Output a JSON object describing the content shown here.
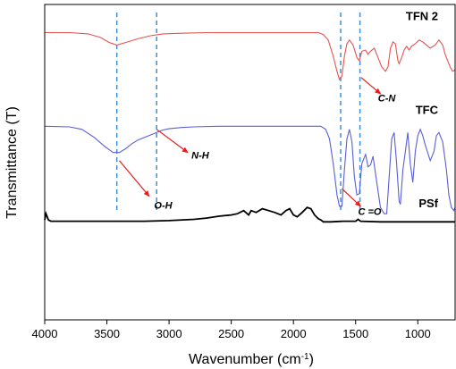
{
  "chart_data": {
    "type": "line",
    "title": "",
    "xlabel": "Wavenumber (cm",
    "xlabel_sup": "-1",
    "xlabel_close": ")",
    "ylabel": "Transmittance (T)",
    "xlim": [
      4000,
      700
    ],
    "x_reversed": true,
    "xticks": [
      4000,
      3500,
      3000,
      2500,
      2000,
      1500,
      1000
    ],
    "xtick_labels": [
      "4000",
      "3500",
      "3000",
      "2500",
      "2000",
      "1500",
      "1000"
    ],
    "yticks_shown": false,
    "grid": false,
    "series": [
      {
        "name": "TFN 2",
        "color": "#e8524f",
        "offset": 3.0,
        "points": [
          [
            4000,
            0.0
          ],
          [
            3800,
            0.0
          ],
          [
            3650,
            -0.02
          ],
          [
            3550,
            -0.08
          ],
          [
            3480,
            -0.16
          ],
          [
            3420,
            -0.2
          ],
          [
            3350,
            -0.16
          ],
          [
            3250,
            -0.1
          ],
          [
            3150,
            -0.05
          ],
          [
            3050,
            -0.02
          ],
          [
            2900,
            -0.01
          ],
          [
            2700,
            0.0
          ],
          [
            2400,
            0.0
          ],
          [
            2100,
            0.0
          ],
          [
            1900,
            0.0
          ],
          [
            1800,
            0.0
          ],
          [
            1760,
            -0.03
          ],
          [
            1720,
            -0.12
          ],
          [
            1680,
            -0.38
          ],
          [
            1650,
            -0.62
          ],
          [
            1630,
            -0.75
          ],
          [
            1610,
            -0.7
          ],
          [
            1590,
            -0.38
          ],
          [
            1570,
            -0.18
          ],
          [
            1550,
            -0.12
          ],
          [
            1520,
            -0.2
          ],
          [
            1490,
            -0.4
          ],
          [
            1470,
            -0.45
          ],
          [
            1450,
            -0.3
          ],
          [
            1420,
            -0.28
          ],
          [
            1400,
            -0.35
          ],
          [
            1380,
            -0.3
          ],
          [
            1350,
            -0.25
          ],
          [
            1320,
            -0.4
          ],
          [
            1290,
            -0.55
          ],
          [
            1260,
            -0.62
          ],
          [
            1240,
            -0.55
          ],
          [
            1220,
            -0.25
          ],
          [
            1200,
            -0.15
          ],
          [
            1180,
            -0.18
          ],
          [
            1160,
            -0.45
          ],
          [
            1150,
            -0.5
          ],
          [
            1130,
            -0.4
          ],
          [
            1110,
            -0.28
          ],
          [
            1090,
            -0.22
          ],
          [
            1070,
            -0.28
          ],
          [
            1050,
            -0.22
          ],
          [
            1020,
            -0.18
          ],
          [
            990,
            -0.12
          ],
          [
            960,
            -0.15
          ],
          [
            930,
            -0.2
          ],
          [
            900,
            -0.25
          ],
          [
            860,
            -0.2
          ],
          [
            830,
            -0.12
          ],
          [
            800,
            -0.2
          ],
          [
            780,
            -0.35
          ],
          [
            760,
            -0.45
          ],
          [
            740,
            -0.55
          ],
          [
            720,
            -0.62
          ],
          [
            700,
            -0.6
          ]
        ]
      },
      {
        "name": "TFC",
        "color": "#5a5fd6",
        "offset": 1.5,
        "points": [
          [
            4000,
            0.0
          ],
          [
            3800,
            -0.01
          ],
          [
            3700,
            -0.05
          ],
          [
            3600,
            -0.18
          ],
          [
            3520,
            -0.32
          ],
          [
            3450,
            -0.42
          ],
          [
            3400,
            -0.42
          ],
          [
            3350,
            -0.36
          ],
          [
            3300,
            -0.28
          ],
          [
            3250,
            -0.22
          ],
          [
            3200,
            -0.18
          ],
          [
            3150,
            -0.14
          ],
          [
            3100,
            -0.1
          ],
          [
            3050,
            -0.06
          ],
          [
            3000,
            -0.04
          ],
          [
            2900,
            -0.02
          ],
          [
            2800,
            -0.01
          ],
          [
            2600,
            0.0
          ],
          [
            2400,
            0.0
          ],
          [
            2100,
            0.0
          ],
          [
            1850,
            0.0
          ],
          [
            1780,
            0.0
          ],
          [
            1740,
            -0.05
          ],
          [
            1710,
            -0.2
          ],
          [
            1680,
            -0.6
          ],
          [
            1650,
            -1.1
          ],
          [
            1630,
            -1.28
          ],
          [
            1610,
            -1.28
          ],
          [
            1590,
            -0.7
          ],
          [
            1570,
            -0.2
          ],
          [
            1550,
            -0.05
          ],
          [
            1530,
            -0.25
          ],
          [
            1510,
            -0.8
          ],
          [
            1490,
            -1.1
          ],
          [
            1470,
            -1.08
          ],
          [
            1450,
            -0.6
          ],
          [
            1420,
            -0.45
          ],
          [
            1400,
            -0.65
          ],
          [
            1380,
            -0.62
          ],
          [
            1360,
            -0.48
          ],
          [
            1330,
            -0.9
          ],
          [
            1300,
            -1.3
          ],
          [
            1270,
            -1.4
          ],
          [
            1250,
            -1.4
          ],
          [
            1230,
            -0.8
          ],
          [
            1210,
            -0.2
          ],
          [
            1190,
            -0.1
          ],
          [
            1170,
            -0.6
          ],
          [
            1150,
            -1.2
          ],
          [
            1140,
            -1.25
          ],
          [
            1120,
            -0.7
          ],
          [
            1100,
            -0.4
          ],
          [
            1080,
            -0.1
          ],
          [
            1060,
            -0.6
          ],
          [
            1040,
            -0.9
          ],
          [
            1020,
            -0.4
          ],
          [
            1000,
            -0.15
          ],
          [
            980,
            -0.05
          ],
          [
            960,
            -0.15
          ],
          [
            940,
            -0.3
          ],
          [
            900,
            -0.55
          ],
          [
            870,
            -0.4
          ],
          [
            850,
            -0.15
          ],
          [
            830,
            -0.1
          ],
          [
            800,
            -0.25
          ],
          [
            770,
            -0.7
          ],
          [
            750,
            -1.1
          ],
          [
            730,
            -1.3
          ],
          [
            710,
            -1.35
          ],
          [
            700,
            -1.3
          ]
        ]
      },
      {
        "name": "PSf",
        "color": "#000000",
        "offset": 0.0,
        "points": [
          [
            4000,
            0.0
          ],
          [
            3990,
            0.1
          ],
          [
            3970,
            0.0
          ],
          [
            3950,
            -0.02
          ],
          [
            3800,
            -0.02
          ],
          [
            3500,
            -0.02
          ],
          [
            3200,
            -0.02
          ],
          [
            3000,
            -0.01
          ],
          [
            2800,
            0.01
          ],
          [
            2700,
            0.03
          ],
          [
            2600,
            0.06
          ],
          [
            2500,
            0.08
          ],
          [
            2450,
            0.1
          ],
          [
            2400,
            0.15
          ],
          [
            2360,
            0.08
          ],
          [
            2340,
            0.15
          ],
          [
            2300,
            0.12
          ],
          [
            2250,
            0.18
          ],
          [
            2200,
            0.15
          ],
          [
            2150,
            0.12
          ],
          [
            2100,
            0.08
          ],
          [
            2060,
            0.15
          ],
          [
            2030,
            0.18
          ],
          [
            2000,
            0.08
          ],
          [
            1970,
            0.05
          ],
          [
            1930,
            0.12
          ],
          [
            1890,
            0.2
          ],
          [
            1860,
            0.18
          ],
          [
            1830,
            0.08
          ],
          [
            1800,
            0.02
          ],
          [
            1780,
            0.0
          ],
          [
            1760,
            -0.03
          ],
          [
            1700,
            -0.03
          ],
          [
            1600,
            -0.02
          ],
          [
            1500,
            -0.02
          ],
          [
            1480,
            0.01
          ],
          [
            1460,
            -0.02
          ],
          [
            1300,
            -0.03
          ],
          [
            1100,
            -0.03
          ],
          [
            900,
            -0.03
          ],
          [
            700,
            -0.03
          ]
        ]
      }
    ],
    "vlines": [
      {
        "x": 3420,
        "color": "#3c8fd6"
      },
      {
        "x": 3100,
        "color": "#3c8fd6"
      },
      {
        "x": 1620,
        "color": "#3c8fd6"
      },
      {
        "x": 1465,
        "color": "#3c8fd6"
      }
    ],
    "annotations": [
      {
        "label": "O-H",
        "arrow_from": [
          3400,
          0.95
        ],
        "arrow_to": [
          3160,
          0.38
        ],
        "text_at": [
          3120,
          0.18
        ]
      },
      {
        "label": "N-H",
        "arrow_from": [
          3100,
          1.45
        ],
        "arrow_to": [
          2850,
          1.08
        ],
        "text_at": [
          2820,
          0.98
        ]
      },
      {
        "label": "C-N",
        "arrow_from": [
          1455,
          2.28
        ],
        "arrow_to": [
          1300,
          2.02
        ],
        "text_at": [
          1320,
          1.9
        ]
      },
      {
        "label": "C =O",
        "arrow_from": [
          1610,
          0.5
        ],
        "arrow_to": [
          1460,
          0.22
        ],
        "text_at": [
          1480,
          0.08
        ]
      }
    ],
    "annotation_arrow_color": "#e81c1c"
  }
}
